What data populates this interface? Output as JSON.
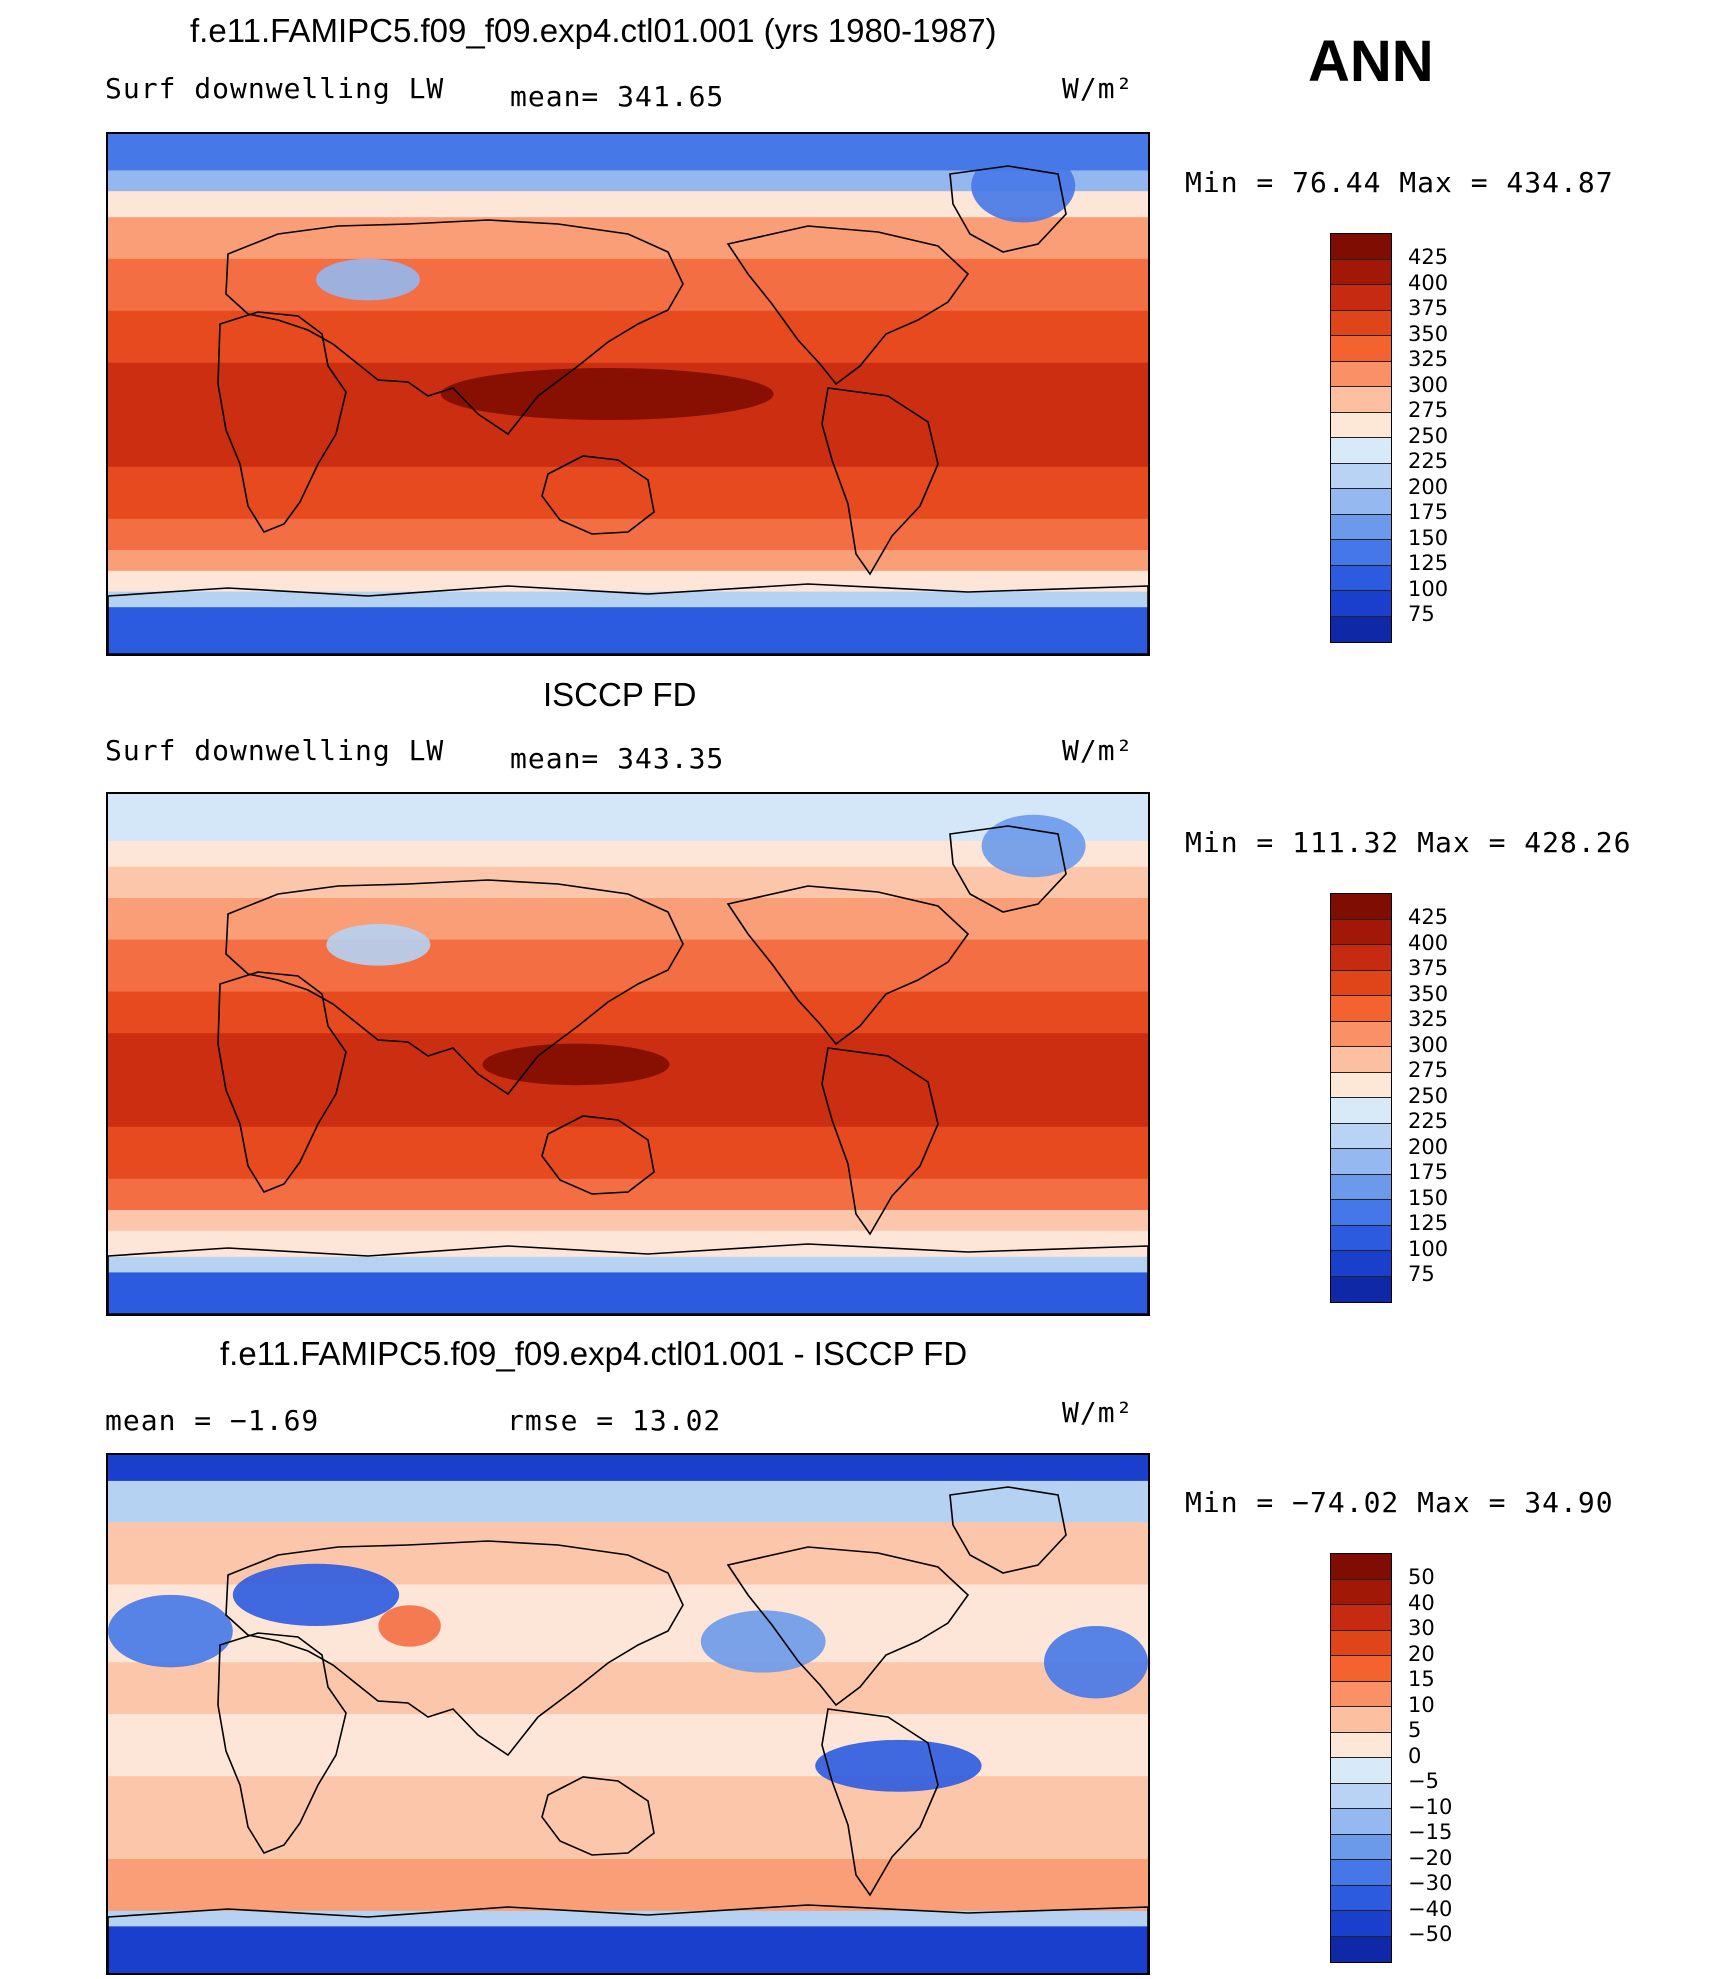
{
  "season": "ANN",
  "units": "W/m²",
  "colors": {
    "warm": [
      "#fde6d8",
      "#fcc6ab",
      "#fa9e77",
      "#f46e43",
      "#e84a1f",
      "#cc2e12",
      "#aa1a08",
      "#7f0d02"
    ],
    "cool": [
      "#d3e7f8",
      "#b5d2f3",
      "#93b7ef",
      "#6c9aeb",
      "#4678e8",
      "#2c5be0",
      "#1a3fcd",
      "#0f28a8",
      "#081a7d"
    ]
  },
  "panels": [
    {
      "title": "f.e11.FAMIPC5.f09_f09.exp4.ctl01.001 (yrs 1980-1987)",
      "left_label": "Surf downwelling LW",
      "center_label": "mean= 341.65",
      "minmax": "Min =   76.44 Max = 434.87",
      "colorbar": {
        "labels": [
          "425",
          "400",
          "375",
          "350",
          "325",
          "300",
          "275",
          "250",
          "225",
          "200",
          "175",
          "150",
          "125",
          "100",
          "75"
        ],
        "colors": [
          "#7f0d02",
          "#a11806",
          "#c62a10",
          "#e04519",
          "#f4622f",
          "#fa9066",
          "#fcc0a0",
          "#fde7d6",
          "#d8e9f8",
          "#b8d3f4",
          "#94b8ef",
          "#6c9aeb",
          "#4677e8",
          "#2c5be0",
          "#1b3fcd",
          "#0f28a8"
        ]
      },
      "map_field": "model"
    },
    {
      "title": "ISCCP FD",
      "left_label": "Surf downwelling LW",
      "center_label": "mean= 343.35",
      "minmax": "Min = 111.32 Max = 428.26",
      "colorbar": {
        "labels": [
          "425",
          "400",
          "375",
          "350",
          "325",
          "300",
          "275",
          "250",
          "225",
          "200",
          "175",
          "150",
          "125",
          "100",
          "75"
        ],
        "colors": [
          "#7f0d02",
          "#a11806",
          "#c62a10",
          "#e04519",
          "#f4622f",
          "#fa9066",
          "#fcc0a0",
          "#fde7d6",
          "#d8e9f8",
          "#b8d3f4",
          "#94b8ef",
          "#6c9aeb",
          "#4677e8",
          "#2c5be0",
          "#1b3fcd",
          "#0f28a8"
        ]
      },
      "map_field": "obs"
    },
    {
      "title": "f.e11.FAMIPC5.f09_f09.exp4.ctl01.001 - ISCCP FD",
      "left_label": "mean =   −1.69",
      "center_label": "rmse =   13.02",
      "minmax": "Min = −74.02 Max =   34.90",
      "colorbar": {
        "labels": [
          "50",
          "40",
          "30",
          "20",
          "15",
          "10",
          "5",
          "0",
          "−5",
          "−10",
          "−15",
          "−20",
          "−30",
          "−40",
          "−50"
        ],
        "colors": [
          "#7f0d02",
          "#a11806",
          "#c62a10",
          "#e04519",
          "#f4622f",
          "#fa9066",
          "#fcc0a0",
          "#fde7d6",
          "#d8e9f8",
          "#b8d3f4",
          "#94b8ef",
          "#6c9aeb",
          "#4677e8",
          "#2c5be0",
          "#1b3fcd",
          "#0f28a8"
        ]
      },
      "map_field": "diff"
    }
  ]
}
